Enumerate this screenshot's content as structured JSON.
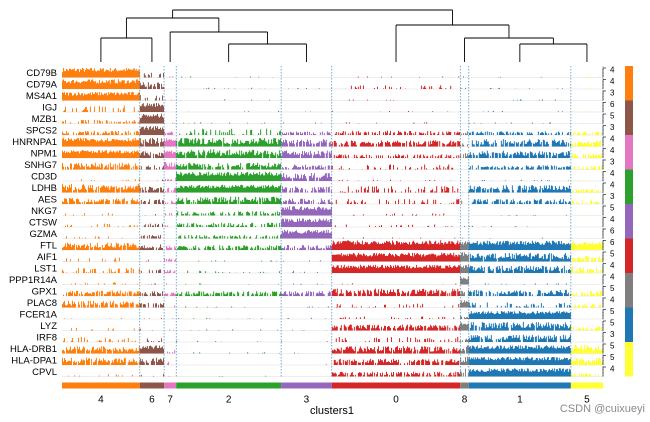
{
  "chart_data": {
    "type": "tracksplot",
    "xlabel": "clusters1",
    "clusters": [
      {
        "label": "4",
        "cells": 109,
        "color": "#ff7f0e"
      },
      {
        "label": "6",
        "cells": 34,
        "color": "#8c564b"
      },
      {
        "label": "7",
        "cells": 17,
        "color": "#e377c2"
      },
      {
        "label": "2",
        "cells": 147,
        "color": "#2ca02c"
      },
      {
        "label": "3",
        "cells": 71,
        "color": "#9467bd"
      },
      {
        "label": "0",
        "cells": 180,
        "color": "#d62728"
      },
      {
        "label": "8",
        "cells": 12,
        "color": "#7f7f7f"
      },
      {
        "label": "1",
        "cells": 143,
        "color": "#1f77b4"
      },
      {
        "label": "5",
        "cells": 45,
        "color": "#ffff33"
      }
    ],
    "dendrogram_leaf_order": [
      "4",
      "6",
      "7",
      "2",
      "3",
      "0",
      "8",
      "1",
      "5"
    ],
    "genes": [
      {
        "name": "CD79B",
        "max": "4"
      },
      {
        "name": "CD79A",
        "max": "4"
      },
      {
        "name": "MS4A1",
        "max": "3"
      },
      {
        "name": "IGJ",
        "max": "6"
      },
      {
        "name": "MZB1",
        "max": "5"
      },
      {
        "name": "SPCS2",
        "max": "3"
      },
      {
        "name": "HNRNPA1",
        "max": "4"
      },
      {
        "name": "NPM1",
        "max": "4"
      },
      {
        "name": "SNHG7",
        "max": "3"
      },
      {
        "name": "CD3D",
        "max": "4"
      },
      {
        "name": "LDHB",
        "max": "4"
      },
      {
        "name": "AES",
        "max": "3"
      },
      {
        "name": "NKG7",
        "max": "5"
      },
      {
        "name": "CTSW",
        "max": "4"
      },
      {
        "name": "GZMA",
        "max": "6"
      },
      {
        "name": "FTL",
        "max": "6"
      },
      {
        "name": "AIF1",
        "max": "5"
      },
      {
        "name": "LST1",
        "max": "4"
      },
      {
        "name": "PPP1R14A",
        "max": "4"
      },
      {
        "name": "GPX1",
        "max": "5"
      },
      {
        "name": "PLAC8",
        "max": "4"
      },
      {
        "name": "FCER1A",
        "max": "5"
      },
      {
        "name": "LYZ",
        "max": "5"
      },
      {
        "name": "IRF8",
        "max": "3"
      },
      {
        "name": "HLA-DRB1",
        "max": "5"
      },
      {
        "name": "HLA-DPA1",
        "max": "5"
      },
      {
        "name": "CPVL",
        "max": "4"
      }
    ],
    "marker_groups": [
      {
        "cluster": "4",
        "start": 0,
        "end": 2
      },
      {
        "cluster": "6",
        "start": 3,
        "end": 5
      },
      {
        "cluster": "7",
        "start": 6,
        "end": 8
      },
      {
        "cluster": "2",
        "start": 9,
        "end": 11
      },
      {
        "cluster": "3",
        "start": 12,
        "end": 14
      },
      {
        "cluster": "0",
        "start": 15,
        "end": 17
      },
      {
        "cluster": "8",
        "start": 18,
        "end": 20
      },
      {
        "cluster": "1",
        "start": 21,
        "end": 23
      },
      {
        "cluster": "5",
        "start": 24,
        "end": 26
      }
    ],
    "expression_level": [
      [
        0.95,
        0.2,
        0.05,
        0.05,
        0.05,
        0.05,
        0.05,
        0.05,
        0.05
      ],
      [
        0.95,
        0.55,
        0.05,
        0.05,
        0.05,
        0.15,
        0.05,
        0.05,
        0.05
      ],
      [
        0.85,
        0.25,
        0.05,
        0.05,
        0.05,
        0.05,
        0.05,
        0.05,
        0.05
      ],
      [
        0.25,
        0.9,
        0.05,
        0.05,
        0.05,
        0.05,
        0.05,
        0.05,
        0.05
      ],
      [
        0.3,
        0.95,
        0.1,
        0.05,
        0.05,
        0.05,
        0.05,
        0.05,
        0.05
      ],
      [
        0.35,
        0.9,
        0.3,
        0.25,
        0.3,
        0.35,
        0.3,
        0.3,
        0.3
      ],
      [
        0.85,
        0.7,
        0.8,
        0.7,
        0.6,
        0.5,
        0.4,
        0.6,
        0.5
      ],
      [
        0.8,
        0.6,
        0.8,
        0.7,
        0.6,
        0.3,
        0.4,
        0.6,
        0.4
      ],
      [
        0.55,
        0.4,
        0.7,
        0.55,
        0.4,
        0.2,
        0.2,
        0.35,
        0.3
      ],
      [
        0.1,
        0.1,
        0.3,
        0.9,
        0.7,
        0.05,
        0.05,
        0.05,
        0.05
      ],
      [
        0.7,
        0.5,
        0.4,
        0.75,
        0.5,
        0.25,
        0.2,
        0.6,
        0.3
      ],
      [
        0.5,
        0.4,
        0.3,
        0.6,
        0.45,
        0.2,
        0.15,
        0.4,
        0.3
      ],
      [
        0.1,
        0.15,
        0.1,
        0.35,
        0.9,
        0.1,
        0.05,
        0.05,
        0.05
      ],
      [
        0.15,
        0.3,
        0.1,
        0.35,
        0.85,
        0.1,
        0.05,
        0.05,
        0.05
      ],
      [
        0.1,
        0.3,
        0.05,
        0.3,
        0.85,
        0.05,
        0.05,
        0.05,
        0.05
      ],
      [
        0.6,
        0.5,
        0.5,
        0.4,
        0.4,
        0.95,
        0.95,
        0.9,
        0.8
      ],
      [
        0.15,
        0.1,
        0.3,
        0.05,
        0.05,
        0.85,
        0.9,
        0.7,
        0.5
      ],
      [
        0.2,
        0.15,
        0.3,
        0.1,
        0.1,
        0.8,
        0.8,
        0.6,
        0.5
      ],
      [
        0.1,
        0.05,
        0.1,
        0.05,
        0.05,
        0.05,
        0.85,
        0.05,
        0.05
      ],
      [
        0.45,
        0.4,
        0.3,
        0.4,
        0.4,
        0.6,
        0.5,
        0.5,
        0.4
      ],
      [
        0.55,
        0.4,
        0.1,
        0.05,
        0.05,
        0.15,
        0.8,
        0.2,
        0.3
      ],
      [
        0.05,
        0.05,
        0.05,
        0.05,
        0.05,
        0.1,
        0.3,
        0.8,
        0.05
      ],
      [
        0.1,
        0.1,
        0.1,
        0.05,
        0.05,
        0.5,
        0.8,
        0.7,
        0.4
      ],
      [
        0.2,
        0.15,
        0.05,
        0.05,
        0.05,
        0.2,
        0.3,
        0.6,
        0.05
      ],
      [
        0.6,
        0.8,
        0.15,
        0.05,
        0.05,
        0.6,
        0.7,
        0.8,
        0.7
      ],
      [
        0.6,
        0.6,
        0.15,
        0.05,
        0.05,
        0.5,
        0.7,
        0.8,
        0.6
      ],
      [
        0.1,
        0.1,
        0.1,
        0.05,
        0.05,
        0.4,
        0.7,
        0.8,
        0.3
      ]
    ]
  },
  "watermark": "CSDN @cuixueyi"
}
